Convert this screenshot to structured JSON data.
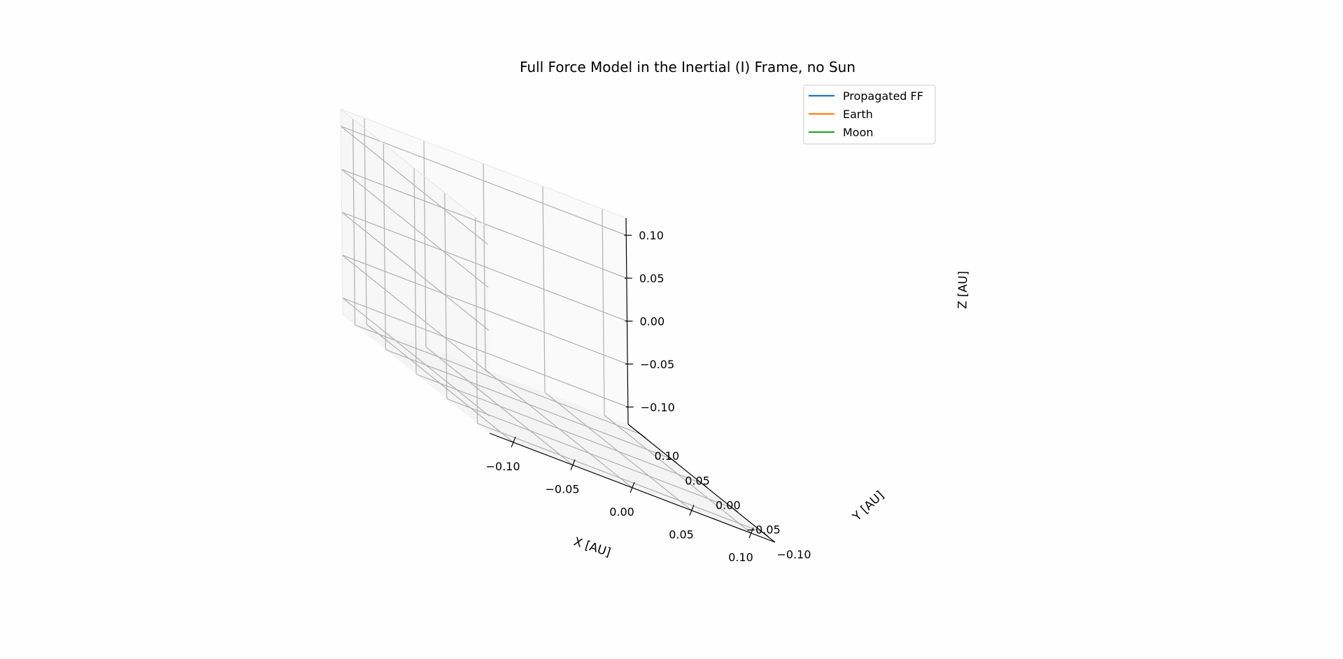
{
  "chart_data": {
    "type": "line",
    "title": "Full Force Model in the Inertial (I) Frame, no Sun",
    "xlabel": "X [AU]",
    "ylabel": "Y [AU]",
    "zlabel": "Z [AU]",
    "xlim": [
      -0.12,
      0.12
    ],
    "ylim": [
      -0.12,
      0.12
    ],
    "zlim": [
      -0.12,
      0.12
    ],
    "xticks": [
      -0.1,
      -0.05,
      0.0,
      0.05,
      0.1
    ],
    "yticks": [
      -0.1,
      -0.05,
      0.0,
      0.05,
      0.1
    ],
    "zticks": [
      -0.1,
      -0.05,
      0.0,
      0.05,
      0.1
    ],
    "xtick_labels": [
      "−0.10",
      "−0.05",
      "0.00",
      "0.05",
      "0.10"
    ],
    "ytick_labels": [
      "−0.10",
      "−0.05",
      "0.00",
      "0.05",
      "0.10"
    ],
    "ztick_labels": [
      "−0.10",
      "−0.05",
      "0.00",
      "0.05",
      "0.10"
    ],
    "grid": true,
    "legend_position": "top-right",
    "series": [
      {
        "name": "Propagated FF",
        "color": "#1f77b4",
        "points": []
      },
      {
        "name": "Earth",
        "color": "#ff7f0e",
        "points": []
      },
      {
        "name": "Moon",
        "color": "#2ca02c",
        "points": []
      }
    ]
  }
}
